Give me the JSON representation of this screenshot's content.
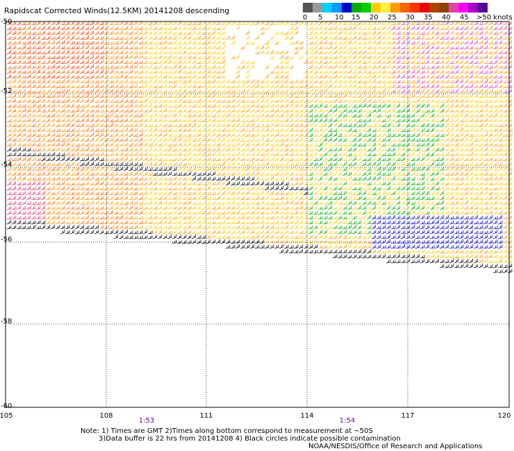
{
  "title": "Rapidscat Corrected Winds(12.5KM) 20141208 descending",
  "legend": {
    "colors": [
      "#555555",
      "#999999",
      "#00ccff",
      "#0099ff",
      "#0000cc",
      "#00aa00",
      "#00cc00",
      "#ffcc00",
      "#ffee44",
      "#ff9900",
      "#ff6600",
      "#ff3300",
      "#ee0000",
      "#aa4400",
      "#884400",
      "#dd44aa",
      "#ff00ff",
      "#aa00cc",
      "#550099"
    ],
    "labels": [
      "0",
      "5",
      "10",
      "15",
      "20",
      "25",
      "30",
      "35",
      "40",
      "45",
      ">50 knots"
    ]
  },
  "axes": {
    "lat_labels": [
      "-50",
      "-52",
      "-54",
      "-56",
      "-58",
      "-60"
    ],
    "lon_labels": [
      "105",
      "108",
      "111",
      "114",
      "117",
      "120"
    ]
  },
  "times": [
    "1:53",
    "1:54"
  ],
  "notes": {
    "line1": "Note: 1) Times are GMT 2)Times along bottom correspond to measurement at ~50S",
    "line2": "3)Data buffer is 22 hrs from 20141208 4) Black circles indicate possible contamination"
  },
  "credit": "NOAA/NESDIS/Office of Research and Applications"
}
